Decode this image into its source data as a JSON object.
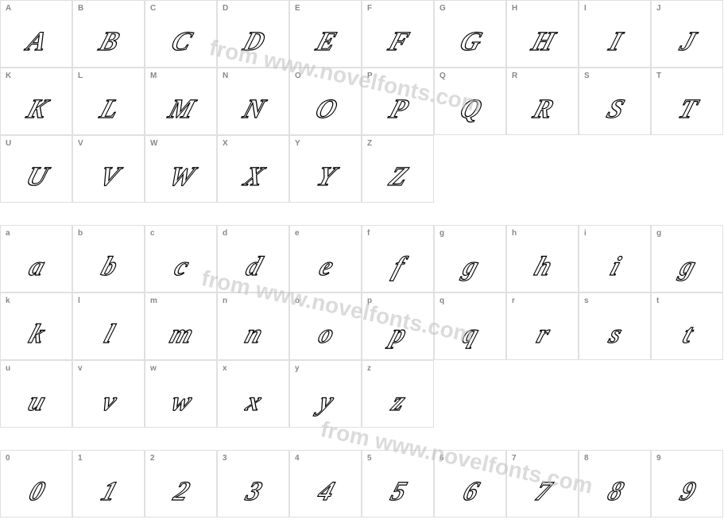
{
  "watermark_text": "from www.novelfonts.com",
  "watermark_color": "#bfbfbf",
  "label_color": "#888888",
  "border_color": "#e0e0e0",
  "glyph_stroke": "#000000",
  "glyph_fill": "#ffffff",
  "rows": [
    {
      "type": "glyphs",
      "cells": [
        {
          "label": "A",
          "glyph": "A"
        },
        {
          "label": "B",
          "glyph": "B"
        },
        {
          "label": "C",
          "glyph": "C"
        },
        {
          "label": "D",
          "glyph": "D"
        },
        {
          "label": "E",
          "glyph": "E"
        },
        {
          "label": "F",
          "glyph": "F"
        },
        {
          "label": "G",
          "glyph": "G"
        },
        {
          "label": "H",
          "glyph": "H"
        },
        {
          "label": "I",
          "glyph": "I"
        },
        {
          "label": "J",
          "glyph": "J"
        }
      ]
    },
    {
      "type": "glyphs",
      "cells": [
        {
          "label": "K",
          "glyph": "K"
        },
        {
          "label": "L",
          "glyph": "L"
        },
        {
          "label": "M",
          "glyph": "M"
        },
        {
          "label": "N",
          "glyph": "N"
        },
        {
          "label": "O",
          "glyph": "O"
        },
        {
          "label": "P",
          "glyph": "P"
        },
        {
          "label": "Q",
          "glyph": "Q"
        },
        {
          "label": "R",
          "glyph": "R"
        },
        {
          "label": "S",
          "glyph": "S"
        },
        {
          "label": "T",
          "glyph": "T"
        }
      ]
    },
    {
      "type": "glyphs",
      "cells": [
        {
          "label": "U",
          "glyph": "U"
        },
        {
          "label": "V",
          "glyph": "V"
        },
        {
          "label": "W",
          "glyph": "W"
        },
        {
          "label": "X",
          "glyph": "X"
        },
        {
          "label": "Y",
          "glyph": "Y"
        },
        {
          "label": "Z",
          "glyph": "Z"
        },
        {
          "label": "",
          "glyph": ""
        },
        {
          "label": "",
          "glyph": ""
        },
        {
          "label": "",
          "glyph": ""
        },
        {
          "label": "",
          "glyph": ""
        }
      ]
    },
    {
      "type": "spacer"
    },
    {
      "type": "glyphs",
      "cells": [
        {
          "label": "a",
          "glyph": "a"
        },
        {
          "label": "b",
          "glyph": "b"
        },
        {
          "label": "c",
          "glyph": "c"
        },
        {
          "label": "d",
          "glyph": "d"
        },
        {
          "label": "e",
          "glyph": "e"
        },
        {
          "label": "f",
          "glyph": "f"
        },
        {
          "label": "g",
          "glyph": "g"
        },
        {
          "label": "h",
          "glyph": "h"
        },
        {
          "label": "i",
          "glyph": "i"
        },
        {
          "label": "g",
          "glyph": "g"
        }
      ]
    },
    {
      "type": "glyphs",
      "cells": [
        {
          "label": "k",
          "glyph": "k"
        },
        {
          "label": "l",
          "glyph": "l"
        },
        {
          "label": "m",
          "glyph": "m"
        },
        {
          "label": "n",
          "glyph": "n"
        },
        {
          "label": "o",
          "glyph": "o"
        },
        {
          "label": "p",
          "glyph": "p"
        },
        {
          "label": "q",
          "glyph": "q"
        },
        {
          "label": "r",
          "glyph": "r"
        },
        {
          "label": "s",
          "glyph": "s"
        },
        {
          "label": "t",
          "glyph": "t"
        }
      ]
    },
    {
      "type": "glyphs",
      "cells": [
        {
          "label": "u",
          "glyph": "u"
        },
        {
          "label": "v",
          "glyph": "v"
        },
        {
          "label": "w",
          "glyph": "w"
        },
        {
          "label": "x",
          "glyph": "x"
        },
        {
          "label": "y",
          "glyph": "y"
        },
        {
          "label": "z",
          "glyph": "z"
        },
        {
          "label": "",
          "glyph": ""
        },
        {
          "label": "",
          "glyph": ""
        },
        {
          "label": "",
          "glyph": ""
        },
        {
          "label": "",
          "glyph": ""
        }
      ]
    },
    {
      "type": "spacer"
    },
    {
      "type": "glyphs",
      "cells": [
        {
          "label": "0",
          "glyph": "0"
        },
        {
          "label": "1",
          "glyph": "1"
        },
        {
          "label": "2",
          "glyph": "2"
        },
        {
          "label": "3",
          "glyph": "3"
        },
        {
          "label": "4",
          "glyph": "4"
        },
        {
          "label": "5",
          "glyph": "5"
        },
        {
          "label": "6",
          "glyph": "6"
        },
        {
          "label": "7",
          "glyph": "7"
        },
        {
          "label": "8",
          "glyph": "8"
        },
        {
          "label": "9",
          "glyph": "9"
        }
      ]
    }
  ]
}
